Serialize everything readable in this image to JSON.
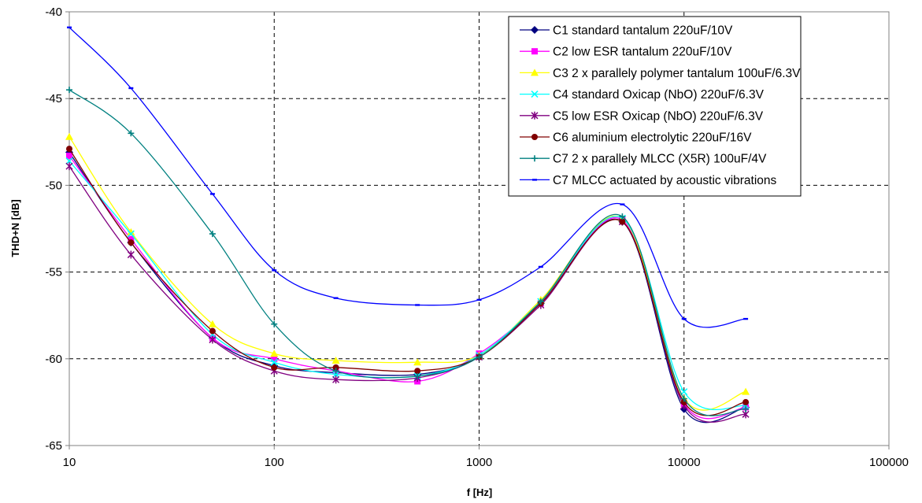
{
  "chart_data": {
    "type": "line",
    "xlabel": "f [Hz]",
    "ylabel": "THD+N [dB]",
    "x_scale": "log",
    "xlim": [
      10,
      100000
    ],
    "ylim": [
      -65,
      -40
    ],
    "x_ticks": [
      10,
      100,
      1000,
      10000,
      100000
    ],
    "x_tick_labels": [
      "10",
      "100",
      "1000",
      "10000",
      "100000"
    ],
    "y_ticks": [
      -40,
      -45,
      -50,
      -55,
      -60,
      -65
    ],
    "y_tick_labels": [
      "-40",
      "-45",
      "-50",
      "-55",
      "-60",
      "-65"
    ],
    "grid": "dashed",
    "legend_position": "top-right",
    "x": [
      10,
      20,
      50,
      100,
      200,
      500,
      1000,
      2000,
      5000,
      10000,
      20000
    ],
    "series": [
      {
        "name": "C1 standard tantalum 220uF/10V",
        "color": "#000080",
        "marker": "diamond",
        "values": [
          -48.1,
          -53.3,
          -58.8,
          -60.4,
          -60.8,
          -60.9,
          -59.9,
          -56.8,
          -52.1,
          -62.9,
          -62.8
        ]
      },
      {
        "name": "C2 low ESR tantalum 220uF/10V",
        "color": "#FF00FF",
        "marker": "square",
        "values": [
          -48.3,
          -53.1,
          -58.8,
          -60.0,
          -60.7,
          -61.3,
          -59.7,
          -56.8,
          -52.0,
          -62.6,
          -62.8
        ]
      },
      {
        "name": "C3 2 x parallely polymer tantalum 100uF/6.3V",
        "color": "#FFFF00",
        "marker": "triangle",
        "values": [
          -47.2,
          -52.7,
          -58.0,
          -59.7,
          -60.1,
          -60.2,
          -59.8,
          -56.6,
          -51.9,
          -62.3,
          -61.9
        ]
      },
      {
        "name": "C4 standard Oxicap (NbO) 220uF/6.3V",
        "color": "#00FFFF",
        "marker": "x",
        "values": [
          -48.6,
          -52.8,
          -58.6,
          -60.2,
          -60.9,
          -61.0,
          -59.8,
          -56.7,
          -51.9,
          -61.9,
          -62.7
        ]
      },
      {
        "name": "C5 low ESR Oxicap (NbO) 220uF/6.3V",
        "color": "#800080",
        "marker": "star",
        "values": [
          -48.9,
          -54.0,
          -58.9,
          -60.7,
          -61.2,
          -61.1,
          -59.9,
          -56.9,
          -52.1,
          -62.7,
          -63.2
        ]
      },
      {
        "name": "C6 aluminium electrolytic 220uF/16V",
        "color": "#800000",
        "marker": "circle",
        "values": [
          -47.9,
          -53.3,
          -58.4,
          -60.5,
          -60.5,
          -60.7,
          -59.9,
          -56.8,
          -52.1,
          -62.5,
          -62.5
        ]
      },
      {
        "name": "C7 2 x parallely MLCC (X5R) 100uF/4V",
        "color": "#008080",
        "marker": "plus",
        "values": [
          -44.5,
          -47.0,
          -52.8,
          -58.0,
          -60.7,
          -61.0,
          -59.9,
          -56.7,
          -51.8,
          -62.3,
          -62.9
        ]
      },
      {
        "name": "C7 MLCC actuated by acoustic vibrations",
        "color": "#0000FF",
        "marker": "dash",
        "values": [
          -40.9,
          -44.4,
          -50.5,
          -54.9,
          -56.5,
          -56.9,
          -56.6,
          -54.7,
          -51.1,
          -57.7,
          -57.7
        ]
      }
    ]
  }
}
